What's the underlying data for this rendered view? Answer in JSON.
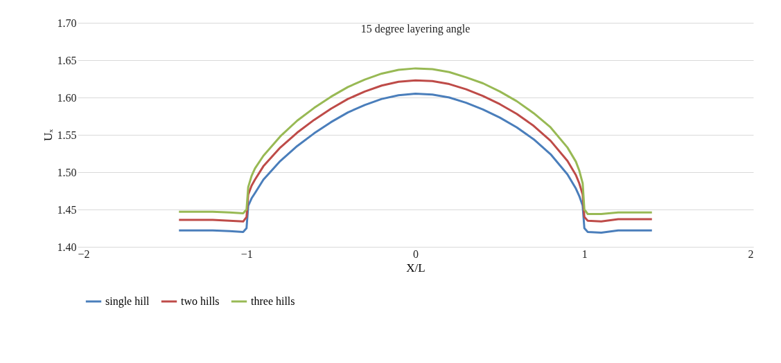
{
  "chart_data": {
    "type": "line",
    "title": "15 degree layering angle",
    "xlabel": "X/L",
    "ylabel": "Uₓ",
    "x": [
      -1.4,
      -1.2,
      -1.1,
      -1.02,
      -1.0,
      -0.99,
      -0.97,
      -0.95,
      -0.9,
      -0.8,
      -0.7,
      -0.6,
      -0.5,
      -0.4,
      -0.3,
      -0.2,
      -0.1,
      0,
      0.1,
      0.2,
      0.3,
      0.4,
      0.5,
      0.6,
      0.7,
      0.8,
      0.9,
      0.95,
      0.97,
      0.99,
      1.0,
      1.02,
      1.1,
      1.2,
      1.4
    ],
    "series": [
      {
        "name": "single hill",
        "color": "#4a7ebb",
        "values": [
          1.422,
          1.422,
          1.421,
          1.42,
          1.425,
          1.455,
          1.465,
          1.472,
          1.49,
          1.515,
          1.535,
          1.552,
          1.567,
          1.58,
          1.59,
          1.598,
          1.603,
          1.605,
          1.604,
          1.6,
          1.593,
          1.584,
          1.573,
          1.56,
          1.544,
          1.524,
          1.497,
          1.478,
          1.468,
          1.455,
          1.425,
          1.42,
          1.419,
          1.422,
          1.422
        ]
      },
      {
        "name": "two hills",
        "color": "#be4b48",
        "values": [
          1.436,
          1.436,
          1.435,
          1.434,
          1.44,
          1.47,
          1.482,
          1.49,
          1.508,
          1.533,
          1.553,
          1.57,
          1.585,
          1.598,
          1.608,
          1.616,
          1.621,
          1.623,
          1.622,
          1.618,
          1.611,
          1.602,
          1.591,
          1.578,
          1.562,
          1.542,
          1.515,
          1.496,
          1.485,
          1.47,
          1.44,
          1.435,
          1.434,
          1.437,
          1.437
        ]
      },
      {
        "name": "three hills",
        "color": "#98b954",
        "values": [
          1.447,
          1.447,
          1.446,
          1.445,
          1.45,
          1.48,
          1.495,
          1.505,
          1.522,
          1.548,
          1.569,
          1.586,
          1.601,
          1.614,
          1.624,
          1.632,
          1.637,
          1.639,
          1.638,
          1.634,
          1.627,
          1.619,
          1.608,
          1.595,
          1.579,
          1.56,
          1.533,
          1.514,
          1.502,
          1.485,
          1.45,
          1.444,
          1.444,
          1.446,
          1.446
        ]
      }
    ],
    "xlim": [
      -2,
      2
    ],
    "xticks": [
      -2,
      -1,
      0,
      1,
      2
    ],
    "ylim": [
      1.4,
      1.7
    ],
    "yticks": [
      {
        "value": 1.4,
        "label": "1.40"
      },
      {
        "value": 1.45,
        "label": "1.45"
      },
      {
        "value": 1.5,
        "label": "1.50"
      },
      {
        "value": 1.55,
        "label": "1.55"
      },
      {
        "value": 1.6,
        "label": "1.60"
      },
      {
        "value": 1.65,
        "label": "1.65"
      },
      {
        "value": 1.7,
        "label": "1.70"
      }
    ],
    "grid": "y",
    "legend": "bottom",
    "marker": "none",
    "line_style": "solid"
  }
}
